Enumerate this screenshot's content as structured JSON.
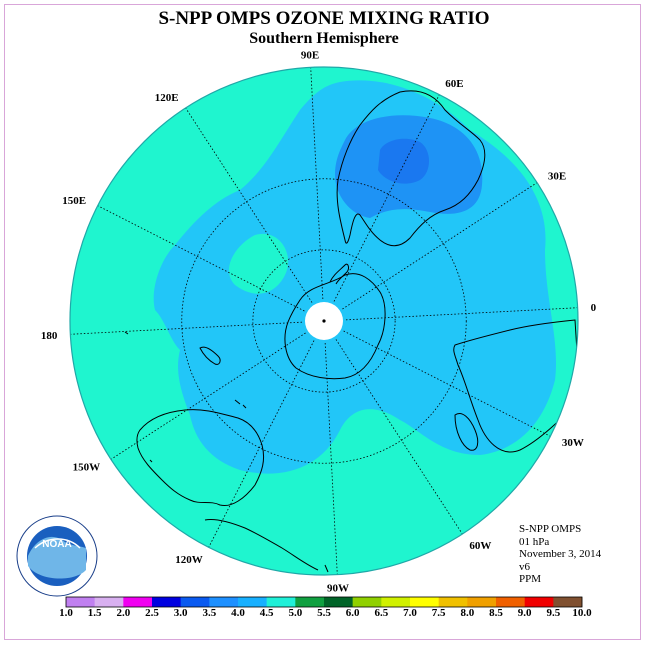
{
  "title": "S-NPP OMPS OZONE MIXING RATIO",
  "subtitle": "Southern Hemisphere",
  "lon_labels": [
    {
      "text": "90W",
      "lon": -90
    },
    {
      "text": "60W",
      "lon": -60
    },
    {
      "text": "30W",
      "lon": -30
    },
    {
      "text": "0",
      "lon": 0
    },
    {
      "text": "30E",
      "lon": 30
    },
    {
      "text": "60E",
      "lon": 60
    },
    {
      "text": "90E",
      "lon": 90
    },
    {
      "text": "120E",
      "lon": 120
    },
    {
      "text": "150E",
      "lon": 150
    },
    {
      "text": "180",
      "lon": 180
    },
    {
      "text": "150W",
      "lon": -150
    },
    {
      "text": "120W",
      "lon": -120
    }
  ],
  "info": {
    "instrument": "S-NPP OMPS",
    "level": "01 hPa",
    "date": "November 3, 2014",
    "version": "v6",
    "units": "PPM"
  },
  "logo": {
    "text": "NOAA",
    "ring_text": "NATIONAL OCEANIC AND ATMOSPHERIC ADMINISTRATION · U.S. DEPARTMENT OF COMMERCE"
  },
  "colorbar": {
    "labels": [
      "1.0",
      "1.5",
      "2.0",
      "2.5",
      "3.0",
      "3.5",
      "4.0",
      "4.5",
      "5.0",
      "5.5",
      "6.0",
      "6.5",
      "7.0",
      "7.5",
      "8.0",
      "8.5",
      "9.0",
      "9.5",
      "10.0"
    ],
    "colors": [
      "#c080f0",
      "#d8b0f0",
      "#f000f0",
      "#0000e0",
      "#0a5af0",
      "#1e90ff",
      "#18b0ff",
      "#20f0d8",
      "#10a040",
      "#006428",
      "#90d000",
      "#d0f000",
      "#ffff00",
      "#f0c000",
      "#f0a000",
      "#f06000",
      "#f00000",
      "#805030"
    ]
  },
  "map_colors": {
    "outer": "#1ff5cf",
    "mid": "#22c6f8",
    "inner": "#1e93f5",
    "pole": "#ffffff",
    "coast": "#000000",
    "rim": "#20a8a8"
  }
}
